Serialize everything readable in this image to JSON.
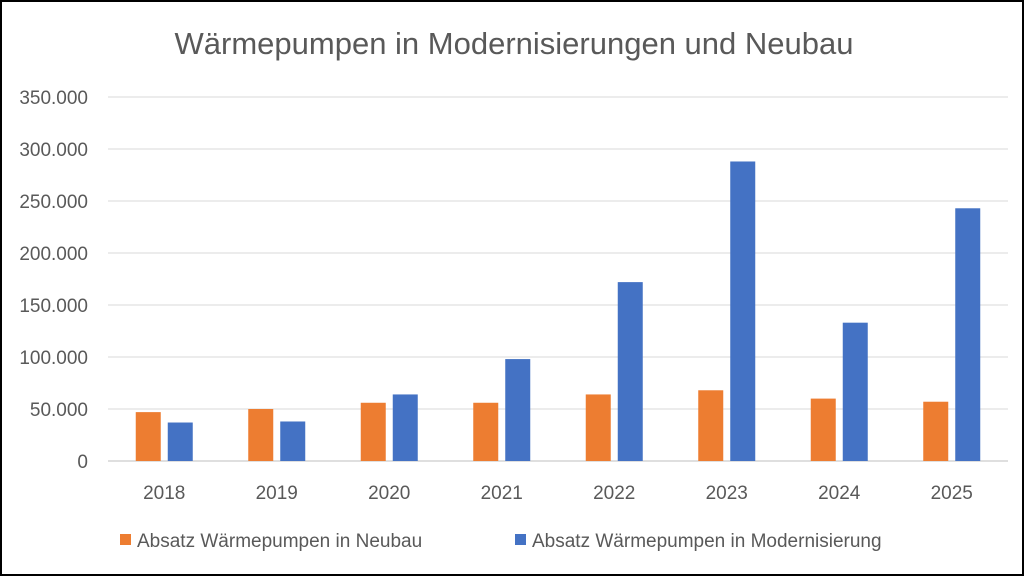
{
  "chart_data": {
    "type": "bar",
    "title": "Wärmepumpen in Modernisierungen und Neubau",
    "xlabel": "",
    "ylabel": "",
    "categories": [
      "2018",
      "2019",
      "2020",
      "2021",
      "2022",
      "2023",
      "2024",
      "2025"
    ],
    "series": [
      {
        "name": "Absatz Wärmepumpen in Neubau",
        "color": "#ED7D31",
        "values": [
          47000,
          50000,
          56000,
          56000,
          64000,
          68000,
          60000,
          57000
        ]
      },
      {
        "name": "Absatz Wärmepumpen in Modernisierung",
        "color": "#4472C4",
        "values": [
          37000,
          38000,
          64000,
          98000,
          172000,
          288000,
          133000,
          243000
        ]
      }
    ],
    "ylim": [
      0,
      350000
    ],
    "yticks": [
      0,
      50000,
      100000,
      150000,
      200000,
      250000,
      300000,
      350000
    ],
    "ytick_labels": [
      "0",
      "50.000",
      "100.000",
      "150.000",
      "200.000",
      "250.000",
      "300.000",
      "350.000"
    ],
    "grid": true,
    "legend_position": "bottom"
  }
}
